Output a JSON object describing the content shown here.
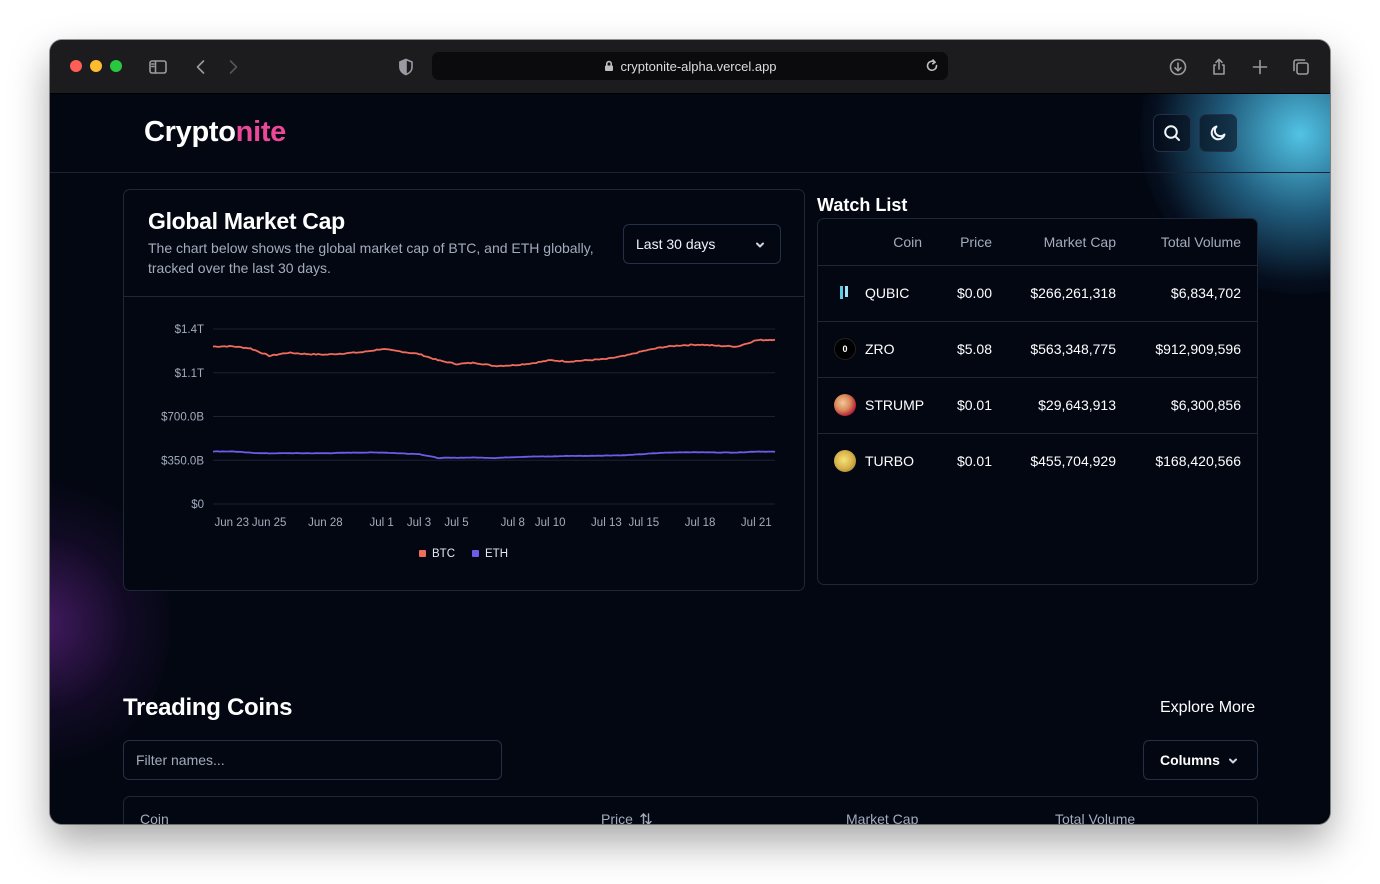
{
  "browser": {
    "url": "cryptonite-alpha.vercel.app"
  },
  "header": {
    "logo_main": "Crypto",
    "logo_accent": "nite"
  },
  "market_chart": {
    "title": "Global Market Cap",
    "description": "The chart below shows the global market cap of BTC, and ETH globally, tracked over the last 30 days.",
    "range_selected": "Last 30 days"
  },
  "chart_data": {
    "type": "line",
    "title": "",
    "xlabel": "",
    "ylabel": "",
    "x_ticks": [
      "Jun 23",
      "Jun 25",
      "Jun 28",
      "Jul 1",
      "Jul 3",
      "Jul 5",
      "Jul 8",
      "Jul 10",
      "Jul 13",
      "Jul 15",
      "Jul 18",
      "Jul 21"
    ],
    "y_ticks": [
      "$0",
      "$350.0B",
      "$700.0B",
      "$1.1T",
      "$1.4T"
    ],
    "y_tick_values": [
      0,
      350,
      700,
      1050,
      1400
    ],
    "ylim": [
      0,
      1400
    ],
    "grid": true,
    "legend": "bottom",
    "x": [
      "Jun 22",
      "Jun 23",
      "Jun 24",
      "Jun 25",
      "Jun 26",
      "Jun 27",
      "Jun 28",
      "Jun 29",
      "Jun 30",
      "Jul 1",
      "Jul 2",
      "Jul 3",
      "Jul 4",
      "Jul 5",
      "Jul 6",
      "Jul 7",
      "Jul 8",
      "Jul 9",
      "Jul 10",
      "Jul 11",
      "Jul 12",
      "Jul 13",
      "Jul 14",
      "Jul 15",
      "Jul 16",
      "Jul 17",
      "Jul 18",
      "Jul 19",
      "Jul 20",
      "Jul 21",
      "Jul 22"
    ],
    "series": [
      {
        "name": "BTC",
        "color": "#f26b5b",
        "values": [
          1260,
          1262,
          1245,
          1185,
          1210,
          1200,
          1195,
          1205,
          1215,
          1240,
          1220,
          1200,
          1150,
          1120,
          1130,
          1105,
          1110,
          1125,
          1150,
          1140,
          1150,
          1160,
          1185,
          1225,
          1255,
          1270,
          1275,
          1265,
          1260,
          1310,
          1315
        ]
      },
      {
        "name": "ETH",
        "color": "#6d5ce8",
        "values": [
          420,
          421,
          410,
          405,
          407,
          406,
          406,
          410,
          412,
          412,
          405,
          400,
          368,
          370,
          372,
          368,
          375,
          380,
          380,
          385,
          385,
          388,
          390,
          400,
          410,
          414,
          414,
          412,
          412,
          420,
          418
        ]
      }
    ]
  },
  "watchlist": {
    "title": "Watch List",
    "columns": [
      "Coin",
      "Price",
      "Market Cap",
      "Total Volume"
    ],
    "rows": [
      {
        "coin": "QUBIC",
        "icon": "qubic-icon",
        "price": "$0.00",
        "market_cap": "$266,261,318",
        "volume": "$6,834,702"
      },
      {
        "coin": "ZRO",
        "icon": "zro-icon",
        "icon_text": "0",
        "price": "$5.08",
        "market_cap": "$563,348,775",
        "volume": "$912,909,596"
      },
      {
        "coin": "STRUMP",
        "icon": "strump-icon",
        "price": "$0.01",
        "market_cap": "$29,643,913",
        "volume": "$6,300,856"
      },
      {
        "coin": "TURBO",
        "icon": "turbo-icon",
        "price": "$0.01",
        "market_cap": "$455,704,929",
        "volume": "$168,420,566"
      }
    ]
  },
  "trending": {
    "title": "Treading Coins",
    "explore_label": "Explore More",
    "filter_placeholder": "Filter names...",
    "columns_label": "Columns",
    "table_columns": [
      "Coin",
      "Price",
      "Market Cap",
      "Total Volume"
    ],
    "sort_icon": "sort-arrows-icon"
  },
  "colors": {
    "background": "#030712",
    "accent": "#ec4899",
    "btc": "#f26b5b",
    "eth": "#6d5ce8"
  }
}
